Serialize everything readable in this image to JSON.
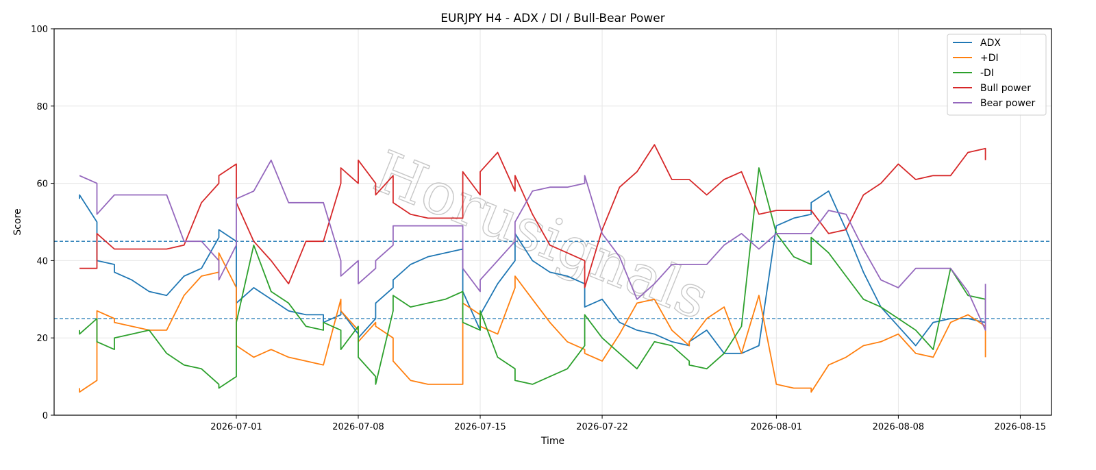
{
  "chart_data": {
    "type": "line",
    "title": "EURJPY H4 - ADX / DI / Bull-Bear Power",
    "xlabel": "Time",
    "ylabel": "Score",
    "ylim": [
      0,
      100
    ],
    "xlim": [
      "2026-06-20T13:00",
      "2026-08-16T19:00"
    ],
    "yticks": [
      0,
      20,
      40,
      60,
      80,
      100
    ],
    "xticks": [
      "2026-07-01",
      "2026-07-08",
      "2026-07-15",
      "2026-07-22",
      "2026-08-01",
      "2026-08-08",
      "2026-08-15"
    ],
    "grid": true,
    "legend_position": "top-right",
    "watermark": "Horusignals",
    "reference_lines": [
      {
        "y": 45,
        "style": "dashed",
        "color": "#1f77b4"
      },
      {
        "y": 25,
        "style": "dashed",
        "color": "#1f77b4"
      }
    ],
    "x": [
      "2026-06-22",
      "2026-06-22",
      "2026-06-23",
      "2026-06-23",
      "2026-06-24",
      "2026-06-24",
      "2026-06-25",
      "2026-06-26",
      "2026-06-27",
      "2026-06-28",
      "2026-06-29",
      "2026-06-30",
      "2026-06-30",
      "2026-07-01",
      "2026-07-01",
      "2026-07-02",
      "2026-07-03",
      "2026-07-04",
      "2026-07-05",
      "2026-07-06",
      "2026-07-06",
      "2026-07-07",
      "2026-07-07",
      "2026-07-08",
      "2026-07-08",
      "2026-07-09",
      "2026-07-09",
      "2026-07-10",
      "2026-07-10",
      "2026-07-11",
      "2026-07-12",
      "2026-07-13",
      "2026-07-14",
      "2026-07-14",
      "2026-07-15",
      "2026-07-15",
      "2026-07-16",
      "2026-07-17",
      "2026-07-17",
      "2026-07-18",
      "2026-07-19",
      "2026-07-20",
      "2026-07-21",
      "2026-07-21",
      "2026-07-22",
      "2026-07-23",
      "2026-07-24",
      "2026-07-25",
      "2026-07-26",
      "2026-07-27",
      "2026-07-27",
      "2026-07-28",
      "2026-07-29",
      "2026-07-30",
      "2026-07-31",
      "2026-08-01",
      "2026-08-02",
      "2026-08-03",
      "2026-08-03",
      "2026-08-04",
      "2026-08-05",
      "2026-08-06",
      "2026-08-07",
      "2026-08-08",
      "2026-08-09",
      "2026-08-10",
      "2026-08-11",
      "2026-08-12",
      "2026-08-13",
      "2026-08-13"
    ],
    "series": [
      {
        "name": "ADX",
        "color": "#1f77b4",
        "values": [
          56,
          57,
          50,
          40,
          39,
          37,
          35,
          32,
          31,
          36,
          38,
          46,
          48,
          45,
          29,
          33,
          30,
          27,
          26,
          26,
          24,
          26,
          27,
          21,
          20,
          25,
          29,
          33,
          35,
          39,
          41,
          42,
          43,
          32,
          22,
          26,
          34,
          40,
          47,
          40,
          37,
          36,
          34,
          28,
          30,
          24,
          22,
          21,
          19,
          18,
          19,
          22,
          16,
          16,
          18,
          49,
          51,
          52,
          55,
          58,
          48,
          37,
          28,
          23,
          18,
          24,
          25,
          25,
          24,
          25
        ]
      },
      {
        "name": "+DI",
        "color": "#ff7f0e",
        "values": [
          7,
          6,
          9,
          27,
          25,
          24,
          23,
          22,
          22,
          31,
          36,
          37,
          42,
          33,
          18,
          15,
          17,
          15,
          14,
          13,
          13,
          30,
          27,
          22,
          19,
          24,
          23,
          20,
          14,
          9,
          8,
          8,
          8,
          29,
          26,
          23,
          21,
          33,
          36,
          30,
          24,
          19,
          17,
          16,
          14,
          21,
          29,
          30,
          22,
          18,
          19,
          25,
          28,
          16,
          31,
          8,
          7,
          7,
          6,
          13,
          15,
          18,
          19,
          21,
          16,
          15,
          24,
          26,
          23,
          15
        ]
      },
      {
        "name": "-DI",
        "color": "#2ca02c",
        "values": [
          22,
          21,
          25,
          19,
          17,
          20,
          21,
          22,
          16,
          13,
          12,
          8,
          7,
          10,
          24,
          44,
          32,
          29,
          23,
          22,
          24,
          22,
          17,
          23,
          15,
          10,
          8,
          27,
          31,
          28,
          29,
          30,
          32,
          24,
          22,
          27,
          15,
          12,
          9,
          8,
          10,
          12,
          18,
          26,
          20,
          16,
          12,
          19,
          18,
          14,
          13,
          12,
          16,
          23,
          64,
          47,
          41,
          39,
          46,
          42,
          36,
          30,
          28,
          25,
          22,
          17,
          38,
          31,
          30,
          26
        ]
      },
      {
        "name": "Bull power",
        "color": "#d62728",
        "values": [
          38,
          38,
          38,
          47,
          43,
          43,
          43,
          43,
          43,
          44,
          55,
          60,
          62,
          65,
          55,
          45,
          40,
          34,
          45,
          45,
          45,
          60,
          64,
          60,
          66,
          60,
          57,
          62,
          55,
          52,
          51,
          51,
          51,
          63,
          57,
          63,
          68,
          58,
          62,
          52,
          44,
          42,
          40,
          33,
          48,
          59,
          63,
          70,
          61,
          61,
          61,
          57,
          61,
          63,
          52,
          53,
          53,
          53,
          53,
          47,
          48,
          57,
          60,
          65,
          61,
          62,
          62,
          68,
          69,
          66
        ]
      },
      {
        "name": "Bear power",
        "color": "#9467bd",
        "values": [
          62,
          62,
          60,
          52,
          57,
          57,
          57,
          57,
          57,
          45,
          45,
          40,
          35,
          44,
          56,
          58,
          66,
          55,
          55,
          55,
          55,
          40,
          36,
          40,
          34,
          38,
          40,
          44,
          49,
          49,
          49,
          49,
          49,
          38,
          32,
          35,
          40,
          45,
          50,
          58,
          59,
          59,
          60,
          62,
          47,
          41,
          30,
          34,
          39,
          39,
          39,
          39,
          44,
          47,
          43,
          47,
          47,
          47,
          47,
          53,
          52,
          43,
          35,
          33,
          38,
          38,
          38,
          32,
          22,
          34
        ]
      }
    ]
  }
}
